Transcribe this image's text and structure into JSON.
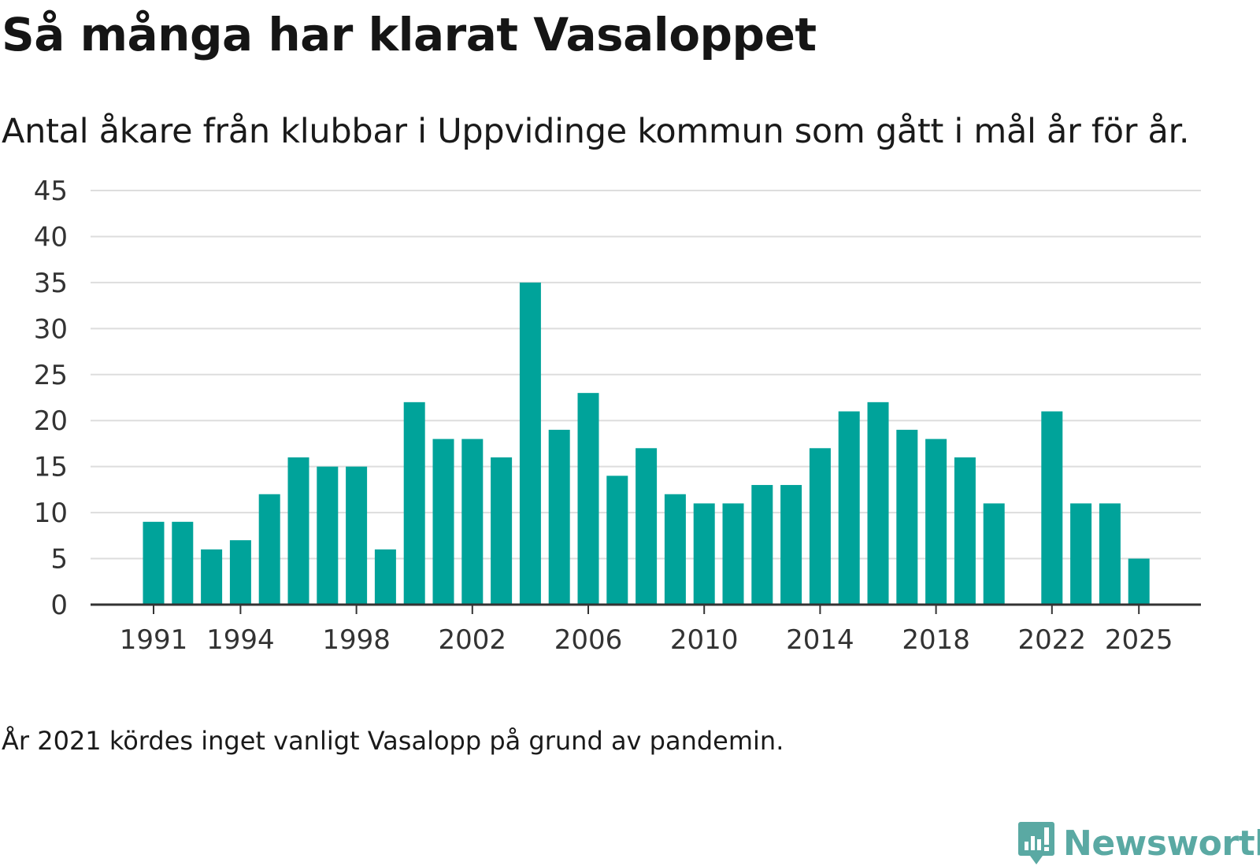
{
  "title": "Så många har klarat Vasaloppet",
  "subtitle": "Antal åkare från klubbar i Uppvidinge kommun som gått i mål år för år.",
  "note": "År 2021 kördes inget vanligt Vasalopp på grund av pandemin.",
  "brand": {
    "name": "Newsworthy",
    "icon": "newsworthy-logo-icon"
  },
  "colors": {
    "bar": "#00a39a",
    "grid": "#dddddd",
    "axis": "#333333",
    "brand": "#5aa9a3"
  },
  "chart_data": {
    "type": "bar",
    "title": "Så många har klarat Vasaloppet",
    "xlabel": "",
    "ylabel": "",
    "ylim": [
      0,
      45
    ],
    "yticks": [
      0,
      5,
      10,
      15,
      20,
      25,
      30,
      35,
      40,
      45
    ],
    "xtick_labels": [
      "1991",
      "1994",
      "1998",
      "2002",
      "2006",
      "2010",
      "2014",
      "2018",
      "2022",
      "2025"
    ],
    "categories": [
      1991,
      1992,
      1993,
      1994,
      1995,
      1996,
      1997,
      1998,
      1999,
      2000,
      2001,
      2002,
      2003,
      2004,
      2005,
      2006,
      2007,
      2008,
      2009,
      2010,
      2011,
      2012,
      2013,
      2014,
      2015,
      2016,
      2017,
      2018,
      2019,
      2020,
      2021,
      2022,
      2023,
      2024,
      2025
    ],
    "values": [
      9,
      9,
      6,
      7,
      12,
      16,
      15,
      15,
      6,
      22,
      18,
      18,
      16,
      35,
      19,
      23,
      14,
      17,
      12,
      11,
      11,
      13,
      13,
      17,
      21,
      22,
      19,
      18,
      16,
      11,
      null,
      21,
      11,
      11,
      5
    ],
    "grid": true,
    "legend": "none"
  }
}
